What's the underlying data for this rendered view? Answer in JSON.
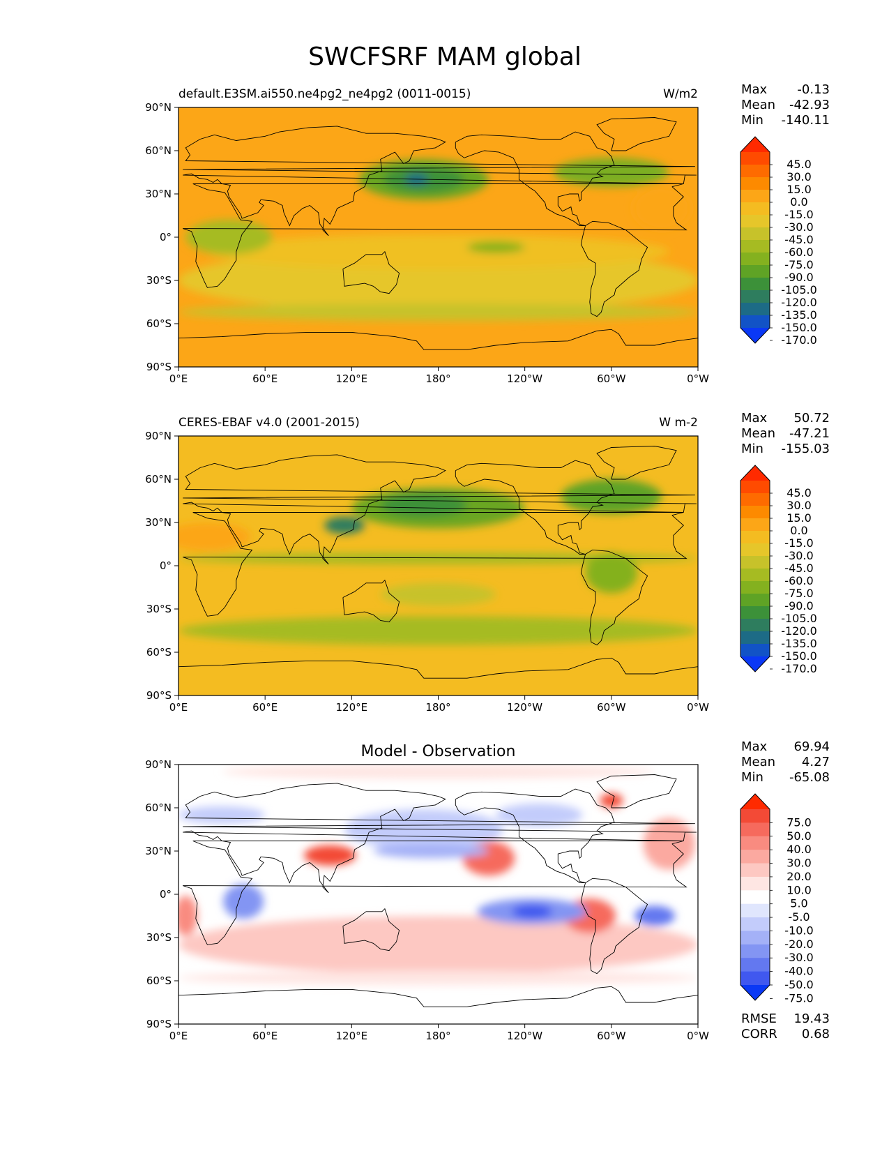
{
  "figure": {
    "title": "SWCFSRF MAM global"
  },
  "lon_ticks": [
    "0°E",
    "60°E",
    "120°E",
    "180°",
    "120°W",
    "60°W",
    "0°W"
  ],
  "lat_ticks": [
    "90°N",
    "60°N",
    "30°N",
    "0°",
    "30°S",
    "60°S",
    "90°S"
  ],
  "panels": [
    {
      "id": "model",
      "left_title": "default.E3SM.ai550.ne4pg2_ne4pg2 (0011-0015)",
      "center_title": "",
      "right_title": "W/m2",
      "stats": [
        {
          "label": "Max",
          "value": "-0.13"
        },
        {
          "label": "Mean",
          "value": "-42.93"
        },
        {
          "label": "Min",
          "value": "-140.11"
        }
      ],
      "colorbar_levels": [
        "45.0",
        "30.0",
        "15.0",
        "0.0",
        "-15.0",
        "-30.0",
        "-45.0",
        "-60.0",
        "-75.0",
        "-90.0",
        "-105.0",
        "-120.0",
        "-135.0",
        "-150.0",
        "-170.0"
      ],
      "colorbar_colors": [
        "#ff2a00",
        "#ff4b00",
        "#fe6b00",
        "#fd8a00",
        "#fca617",
        "#f4bc21",
        "#e6c62a",
        "#c7c22a",
        "#a6bb22",
        "#84b11f",
        "#5fa325",
        "#3c9139",
        "#2e7d5e",
        "#1d6b86",
        "#1253c6",
        "#0a38f5"
      ],
      "base_color": "#fca617",
      "blobs": [
        {
          "lon": 170,
          "lat": 40,
          "rx": 45,
          "ry": 14,
          "color": "#6aa624"
        },
        {
          "lon": 170,
          "lat": 40,
          "rx": 28,
          "ry": 9,
          "color": "#3c9139"
        },
        {
          "lon": 165,
          "lat": 40,
          "rx": 8,
          "ry": 4,
          "color": "#1d6b86"
        },
        {
          "lon": 300,
          "lat": 45,
          "rx": 40,
          "ry": 10,
          "color": "#7cae20"
        },
        {
          "lon": 180,
          "lat": -30,
          "rx": 180,
          "ry": 22,
          "color": "#e6c62a"
        },
        {
          "lon": 180,
          "lat": -10,
          "rx": 160,
          "ry": 12,
          "color": "#f0c024"
        },
        {
          "lon": 180,
          "lat": -52,
          "rx": 180,
          "ry": 6,
          "color": "#c7c22a"
        },
        {
          "lon": 35,
          "lat": 0,
          "rx": 30,
          "ry": 12,
          "color": "#a6bb22"
        },
        {
          "lon": 220,
          "lat": -7,
          "rx": 20,
          "ry": 4,
          "color": "#84b11f"
        },
        {
          "lon": 335,
          "lat": 20,
          "rx": 20,
          "ry": 15,
          "color": "#fca617"
        }
      ]
    },
    {
      "id": "obs",
      "left_title": "CERES-EBAF v4.0 (2001-2015)",
      "center_title": "",
      "right_title": "W m-2",
      "stats": [
        {
          "label": "Max",
          "value": "50.72"
        },
        {
          "label": "Mean",
          "value": "-47.21"
        },
        {
          "label": "Min",
          "value": "-155.03"
        }
      ],
      "colorbar_levels": [
        "45.0",
        "30.0",
        "15.0",
        "0.0",
        "-15.0",
        "-30.0",
        "-45.0",
        "-60.0",
        "-75.0",
        "-90.0",
        "-105.0",
        "-120.0",
        "-135.0",
        "-150.0",
        "-170.0"
      ],
      "colorbar_colors": [
        "#ff2a00",
        "#ff4b00",
        "#fe6b00",
        "#fd8a00",
        "#fca617",
        "#f4bc21",
        "#e6c62a",
        "#c7c22a",
        "#a6bb22",
        "#84b11f",
        "#5fa325",
        "#3c9139",
        "#2e7d5e",
        "#1d6b86",
        "#1253c6",
        "#0a38f5"
      ],
      "base_color": "#f4bc21",
      "blobs": [
        {
          "lon": 180,
          "lat": 40,
          "rx": 60,
          "ry": 14,
          "color": "#6aa624"
        },
        {
          "lon": 170,
          "lat": 42,
          "rx": 30,
          "ry": 8,
          "color": "#3c9139"
        },
        {
          "lon": 115,
          "lat": 28,
          "rx": 14,
          "ry": 6,
          "color": "#2e7d5e"
        },
        {
          "lon": 300,
          "lat": 48,
          "rx": 35,
          "ry": 12,
          "color": "#5fa325"
        },
        {
          "lon": 180,
          "lat": -45,
          "rx": 180,
          "ry": 10,
          "color": "#a6bb22"
        },
        {
          "lon": 180,
          "lat": 5,
          "rx": 180,
          "ry": 4,
          "color": "#a6bb22"
        },
        {
          "lon": 300,
          "lat": -5,
          "rx": 18,
          "ry": 14,
          "color": "#84b11f"
        },
        {
          "lon": 20,
          "lat": 20,
          "rx": 30,
          "ry": 10,
          "color": "#fca617"
        },
        {
          "lon": 180,
          "lat": -20,
          "rx": 40,
          "ry": 8,
          "color": "#c7c22a"
        }
      ]
    },
    {
      "id": "diff",
      "left_title": "",
      "center_title": "Model - Observation",
      "right_title": "",
      "stats": [
        {
          "label": "Max",
          "value": "69.94"
        },
        {
          "label": "Mean",
          "value": "4.27"
        },
        {
          "label": "Min",
          "value": "-65.08"
        }
      ],
      "extra_stats": [
        {
          "label": "RMSE",
          "value": "19.43"
        },
        {
          "label": "CORR",
          "value": "0.68"
        }
      ],
      "colorbar_levels": [
        "75.0",
        "50.0",
        "40.0",
        "30.0",
        "20.0",
        "10.0",
        "5.0",
        "-5.0",
        "-10.0",
        "-20.0",
        "-30.0",
        "-40.0",
        "-50.0",
        "-75.0"
      ],
      "colorbar_colors": [
        "#ff2a00",
        "#f34a36",
        "#f66a5d",
        "#f98b80",
        "#fba9a0",
        "#fdc8c2",
        "#fee6e3",
        "#ffffff",
        "#e0e6fd",
        "#c3ccfb",
        "#a4b1f7",
        "#8395f3",
        "#6378f0",
        "#4058ef",
        "#0a38f5"
      ],
      "base_color": "#ffffff",
      "blobs": [
        {
          "lon": 180,
          "lat": -35,
          "rx": 180,
          "ry": 20,
          "color": "#fdc8c2"
        },
        {
          "lon": 180,
          "lat": -58,
          "rx": 180,
          "ry": 5,
          "color": "#fee6e3"
        },
        {
          "lon": 105,
          "lat": 27,
          "rx": 18,
          "ry": 7,
          "color": "#f34a36"
        },
        {
          "lon": 215,
          "lat": 25,
          "rx": 18,
          "ry": 12,
          "color": "#f66a5d"
        },
        {
          "lon": 285,
          "lat": -15,
          "rx": 18,
          "ry": 12,
          "color": "#f66a5d"
        },
        {
          "lon": 5,
          "lat": -15,
          "rx": 8,
          "ry": 14,
          "color": "#f98b80"
        },
        {
          "lon": 340,
          "lat": 35,
          "rx": 18,
          "ry": 18,
          "color": "#fba9a0"
        },
        {
          "lon": 245,
          "lat": -12,
          "rx": 38,
          "ry": 9,
          "color": "#8395f3"
        },
        {
          "lon": 245,
          "lat": -12,
          "rx": 14,
          "ry": 5,
          "color": "#4058ef"
        },
        {
          "lon": 330,
          "lat": -15,
          "rx": 14,
          "ry": 7,
          "color": "#6378f0"
        },
        {
          "lon": 45,
          "lat": -5,
          "rx": 14,
          "ry": 12,
          "color": "#8395f3"
        },
        {
          "lon": 170,
          "lat": 45,
          "rx": 55,
          "ry": 14,
          "color": "#c3ccfb"
        },
        {
          "lon": 175,
          "lat": 30,
          "rx": 40,
          "ry": 5,
          "color": "#a4b1f7"
        },
        {
          "lon": 250,
          "lat": 55,
          "rx": 30,
          "ry": 8,
          "color": "#c3ccfb"
        },
        {
          "lon": 300,
          "lat": 65,
          "rx": 8,
          "ry": 5,
          "color": "#f34a36"
        },
        {
          "lon": 30,
          "lat": 55,
          "rx": 30,
          "ry": 6,
          "color": "#c3ccfb"
        },
        {
          "lon": 180,
          "lat": 85,
          "rx": 150,
          "ry": 5,
          "color": "#fee6e3"
        }
      ]
    }
  ]
}
